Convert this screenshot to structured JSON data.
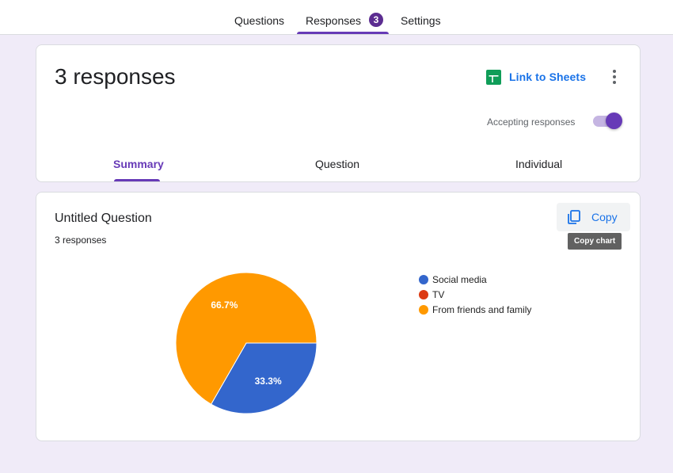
{
  "topnav": {
    "tabs": [
      {
        "label": "Questions"
      },
      {
        "label": "Responses"
      },
      {
        "label": "Settings"
      }
    ],
    "responses_badge": "3"
  },
  "header": {
    "title": "3 responses",
    "link_sheets_label": "Link to Sheets",
    "accepting_label": "Accepting responses",
    "accepting_on": true,
    "subtabs": [
      {
        "label": "Summary"
      },
      {
        "label": "Question"
      },
      {
        "label": "Individual"
      }
    ]
  },
  "question": {
    "title": "Untitled Question",
    "count": "3 responses",
    "copy_label": "Copy",
    "copy_tooltip": "Copy chart"
  },
  "colors": {
    "accent": "#673ab7",
    "link": "#1a73e8",
    "sheets_green": "#0f9d58"
  },
  "chart_data": {
    "type": "pie",
    "categories": [
      "Social media",
      "TV",
      "From friends and family"
    ],
    "values": [
      33.3,
      0,
      66.7
    ],
    "colors": [
      "#3366cc",
      "#dc3912",
      "#ff9900"
    ],
    "labels": [
      "33.3%",
      "",
      "66.7%"
    ],
    "legend_position": "right"
  }
}
